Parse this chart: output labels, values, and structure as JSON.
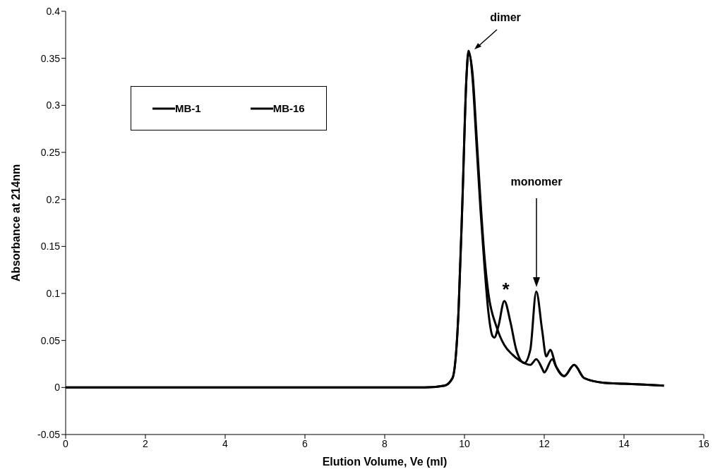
{
  "chart_data": {
    "type": "line",
    "xlabel": "Elution Volume, Ve (ml)",
    "ylabel": "Absorbance at 214nm",
    "xlim": [
      0,
      16
    ],
    "xticks": [
      0,
      2,
      4,
      6,
      8,
      10,
      12,
      14,
      16
    ],
    "ylim": [
      -0.05,
      0.4
    ],
    "yticks": [
      -0.05,
      0,
      0.05,
      0.1,
      0.15,
      0.2,
      0.25,
      0.3,
      0.35,
      0.4
    ],
    "grid": false,
    "legend": "top left",
    "marker": "none",
    "line_style": "solid",
    "series": [
      {
        "name": "MB-1",
        "color": "#000000",
        "x": [
          0,
          2,
          4,
          6,
          8,
          9,
          9.5,
          9.7,
          9.85,
          9.95,
          10.05,
          10.1,
          10.2,
          10.3,
          10.4,
          10.5,
          10.6,
          10.7,
          10.75,
          10.85,
          11.0,
          11.15,
          11.3,
          11.5,
          11.65,
          11.8,
          11.95,
          12.05,
          12.15,
          12.3,
          12.5,
          12.75,
          13.0,
          13.5,
          14,
          15
        ],
        "values": [
          0,
          0,
          0,
          0,
          0,
          0,
          0.002,
          0.01,
          0.08,
          0.2,
          0.33,
          0.358,
          0.33,
          0.26,
          0.19,
          0.13,
          0.08,
          0.055,
          0.053,
          0.065,
          0.092,
          0.07,
          0.04,
          0.026,
          0.04,
          0.102,
          0.06,
          0.033,
          0.04,
          0.022,
          0.012,
          0.024,
          0.01,
          0.005,
          0.004,
          0.002
        ]
      },
      {
        "name": "MB-16",
        "color": "#000000",
        "x": [
          0,
          2,
          4,
          6,
          8,
          9,
          9.5,
          9.7,
          9.85,
          9.95,
          10.05,
          10.1,
          10.2,
          10.3,
          10.4,
          10.5,
          10.6,
          10.8,
          11.0,
          11.2,
          11.5,
          11.65,
          11.8,
          11.95,
          12.0,
          12.2,
          12.3,
          12.5,
          12.75,
          13.0,
          13.5,
          14,
          15
        ],
        "values": [
          0,
          0,
          0,
          0,
          0,
          0,
          0.002,
          0.01,
          0.08,
          0.2,
          0.33,
          0.356,
          0.335,
          0.27,
          0.2,
          0.14,
          0.1,
          0.065,
          0.045,
          0.035,
          0.026,
          0.024,
          0.03,
          0.02,
          0.016,
          0.03,
          0.022,
          0.012,
          0.024,
          0.01,
          0.005,
          0.004,
          0.002
        ]
      }
    ],
    "annotations": [
      "dimer",
      "monomer",
      {
        "text": "*",
        "x": 11.0,
        "y": 0.092
      }
    ]
  }
}
